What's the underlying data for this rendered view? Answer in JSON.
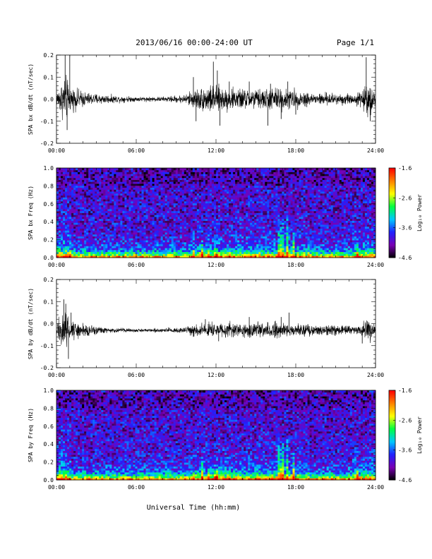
{
  "header": {
    "title": "2013/06/16  00:00-24:00 UT",
    "page": "Page 1/1"
  },
  "footer": {
    "xlabel": "Universal Time (hh:mm)"
  },
  "chart_data": [
    {
      "type": "line",
      "name": "bx-timeseries",
      "ylabel": "SPA bx dB/dt (nT/sec)",
      "xlim": [
        0,
        24
      ],
      "ylim": [
        -0.2,
        0.2
      ],
      "x_ticks": [
        "00:00",
        "06:00",
        "12:00",
        "18:00",
        "24:00"
      ],
      "y_ticks": [
        "-0.2",
        "-0.1",
        "0.0",
        "0.1",
        "0.2"
      ],
      "y_tick_values": [
        -0.2,
        -0.1,
        0.0,
        0.1,
        0.2
      ],
      "baseline": 0.0,
      "activity_envelope": {
        "hours": [
          0,
          0.4,
          0.7,
          1.0,
          1.5,
          2.5,
          4,
          6,
          8,
          9.5,
          10.5,
          11.5,
          12.5,
          14,
          15.5,
          16.5,
          17.5,
          18.5,
          19.5,
          20.5,
          21.5,
          22.5,
          23.2,
          23.6,
          24
        ],
        "amplitude": [
          0.03,
          0.09,
          0.12,
          0.06,
          0.05,
          0.03,
          0.02,
          0.012,
          0.012,
          0.02,
          0.05,
          0.07,
          0.06,
          0.05,
          0.05,
          0.06,
          0.05,
          0.04,
          0.03,
          0.03,
          0.03,
          0.025,
          0.06,
          0.09,
          0.03
        ]
      },
      "spikes": [
        {
          "x": 0.65,
          "y": 0.2
        },
        {
          "x": 0.8,
          "y": -0.14
        },
        {
          "x": 1.0,
          "y": 0.2
        },
        {
          "x": 10.3,
          "y": 0.1
        },
        {
          "x": 10.5,
          "y": -0.1
        },
        {
          "x": 11.8,
          "y": 0.17
        },
        {
          "x": 12.1,
          "y": 0.13
        },
        {
          "x": 12.3,
          "y": -0.12
        },
        {
          "x": 13.0,
          "y": 0.08
        },
        {
          "x": 14.5,
          "y": 0.08
        },
        {
          "x": 15.9,
          "y": -0.12
        },
        {
          "x": 16.1,
          "y": 0.07
        },
        {
          "x": 16.9,
          "y": -0.09
        },
        {
          "x": 17.4,
          "y": 0.08
        },
        {
          "x": 18.0,
          "y": -0.07
        },
        {
          "x": 23.3,
          "y": 0.19
        },
        {
          "x": 23.6,
          "y": -0.1
        }
      ],
      "color": "#000000"
    },
    {
      "type": "heatmap",
      "name": "bx-spectrogram",
      "ylabel": "SPA bx Freq (Hz)",
      "xlim": [
        0,
        24
      ],
      "ylim": [
        0,
        1.0
      ],
      "x_ticks": [
        "00:00",
        "06:00",
        "12:00",
        "18:00",
        "24:00"
      ],
      "y_ticks": [
        "0.0",
        "0.2",
        "0.4",
        "0.6",
        "0.8",
        "1.0"
      ],
      "y_tick_values": [
        0.0,
        0.2,
        0.4,
        0.6,
        0.8,
        1.0
      ],
      "colorbar": {
        "label": "Log₁₀ Power",
        "range": [
          -4.6,
          -1.6
        ],
        "ticks": [
          "-1.6",
          "-2.6",
          "-3.6",
          "-4.6"
        ],
        "tick_values": [
          -1.6,
          -2.6,
          -3.6,
          -4.6
        ],
        "colors": [
          "#000000",
          "#7a00b4",
          "#2020ff",
          "#00c8ff",
          "#00ff40",
          "#ffff00",
          "#ff8000",
          "#ff0000"
        ]
      },
      "background_power": -4.0,
      "low_freq_band_power": -3.0,
      "bright_streaks": [
        {
          "x": 10.3,
          "f_top": 0.08
        },
        {
          "x": 11.0,
          "f_top": 0.2
        },
        {
          "x": 11.5,
          "f_top": 0.1
        },
        {
          "x": 12.0,
          "f_top": 0.1
        },
        {
          "x": 13.0,
          "f_top": 0.08
        },
        {
          "x": 16.8,
          "f_top": 0.35
        },
        {
          "x": 17.0,
          "f_top": 0.4
        },
        {
          "x": 17.3,
          "f_top": 0.45
        },
        {
          "x": 17.8,
          "f_top": 0.3
        },
        {
          "x": 22.6,
          "f_top": 0.15
        }
      ]
    },
    {
      "type": "line",
      "name": "by-timeseries",
      "ylabel": "SPA by dB/dt (nT/sec)",
      "xlim": [
        0,
        24
      ],
      "ylim": [
        -0.2,
        0.2
      ],
      "x_ticks": [
        "00:00",
        "06:00",
        "12:00",
        "18:00",
        "24:00"
      ],
      "y_ticks": [
        "-0.2",
        "-0.1",
        "0.0",
        "0.1",
        "0.2"
      ],
      "y_tick_values": [
        -0.2,
        -0.1,
        0.0,
        0.1,
        0.2
      ],
      "baseline": -0.03,
      "activity_envelope": {
        "hours": [
          0,
          0.4,
          0.7,
          1.0,
          1.5,
          2.5,
          4,
          6,
          8,
          9.5,
          10.5,
          11.5,
          12.5,
          14,
          15.5,
          16.5,
          17.5,
          18.5,
          19.5,
          20.5,
          21.5,
          22.5,
          23.2,
          23.6,
          24
        ],
        "amplitude": [
          0.03,
          0.09,
          0.1,
          0.05,
          0.04,
          0.025,
          0.012,
          0.008,
          0.01,
          0.015,
          0.03,
          0.04,
          0.035,
          0.035,
          0.035,
          0.04,
          0.035,
          0.03,
          0.025,
          0.025,
          0.025,
          0.02,
          0.04,
          0.05,
          0.02
        ]
      },
      "spikes": [
        {
          "x": 0.55,
          "y": 0.11
        },
        {
          "x": 0.7,
          "y": 0.09
        },
        {
          "x": 0.9,
          "y": -0.16
        },
        {
          "x": 1.1,
          "y": 0.05
        },
        {
          "x": 10.3,
          "y": -0.06
        },
        {
          "x": 11.2,
          "y": 0.02
        },
        {
          "x": 12.2,
          "y": -0.08
        },
        {
          "x": 14.5,
          "y": 0.03
        },
        {
          "x": 16.9,
          "y": 0.03
        },
        {
          "x": 17.5,
          "y": 0.05
        },
        {
          "x": 23.0,
          "y": -0.09
        },
        {
          "x": 23.4,
          "y": 0.01
        }
      ],
      "color": "#000000"
    },
    {
      "type": "heatmap",
      "name": "by-spectrogram",
      "ylabel": "SPA by Freq (Hz)",
      "xlim": [
        0,
        24
      ],
      "ylim": [
        0,
        1.0
      ],
      "x_ticks": [
        "00:00",
        "06:00",
        "12:00",
        "18:00",
        "24:00"
      ],
      "y_ticks": [
        "0.0",
        "0.2",
        "0.4",
        "0.6",
        "0.8",
        "1.0"
      ],
      "y_tick_values": [
        0.0,
        0.2,
        0.4,
        0.6,
        0.8,
        1.0
      ],
      "colorbar": {
        "label": "Log₁₀ Power",
        "range": [
          -4.6,
          -1.6
        ],
        "ticks": [
          "-1.6",
          "-2.6",
          "-3.6",
          "-4.6"
        ],
        "tick_values": [
          -1.6,
          -2.6,
          -3.6,
          -4.6
        ],
        "colors": [
          "#000000",
          "#7a00b4",
          "#2020ff",
          "#00c8ff",
          "#00ff40",
          "#ffff00",
          "#ff8000",
          "#ff0000"
        ]
      },
      "background_power": -4.0,
      "low_freq_band_power": -3.0,
      "bright_streaks": [
        {
          "x": 10.3,
          "f_top": 0.1
        },
        {
          "x": 11.0,
          "f_top": 0.25
        },
        {
          "x": 11.5,
          "f_top": 0.12
        },
        {
          "x": 12.0,
          "f_top": 0.12
        },
        {
          "x": 13.0,
          "f_top": 0.08
        },
        {
          "x": 16.8,
          "f_top": 0.4
        },
        {
          "x": 17.0,
          "f_top": 0.45
        },
        {
          "x": 17.3,
          "f_top": 0.5
        },
        {
          "x": 17.8,
          "f_top": 0.3
        },
        {
          "x": 22.6,
          "f_top": 0.15
        }
      ]
    }
  ]
}
